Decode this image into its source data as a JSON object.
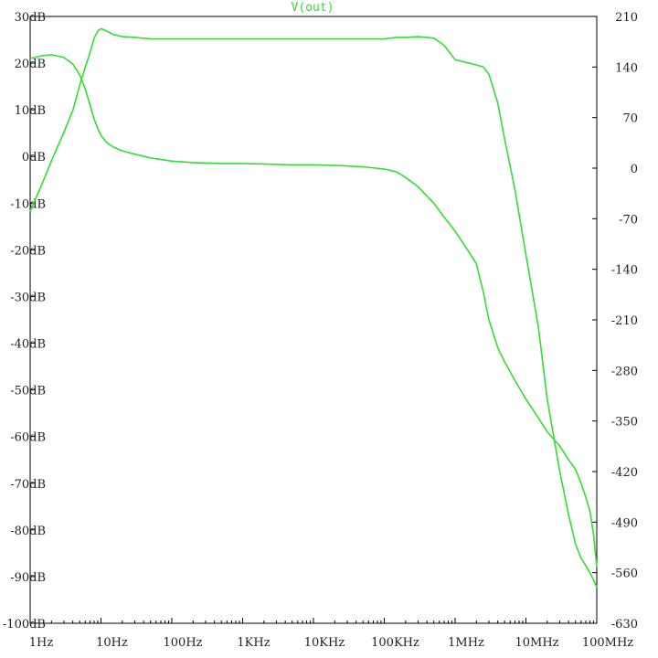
{
  "chart_data": {
    "type": "line",
    "title": "V(out)",
    "xscale": "log",
    "xlim": [
      1,
      100000000
    ],
    "x_ticks": [
      {
        "value": 1,
        "label": "1Hz"
      },
      {
        "value": 10,
        "label": "10Hz"
      },
      {
        "value": 100,
        "label": "100Hz"
      },
      {
        "value": 1000,
        "label": "1KHz"
      },
      {
        "value": 10000,
        "label": "10KHz"
      },
      {
        "value": 100000,
        "label": "100KHz"
      },
      {
        "value": 1000000,
        "label": "1MHz"
      },
      {
        "value": 10000000,
        "label": "10MHz"
      },
      {
        "value": 100000000,
        "label": "100MHz"
      }
    ],
    "ylim_left": [
      -100,
      30
    ],
    "y_ticks_left": [
      {
        "value": 30,
        "label": "30dB"
      },
      {
        "value": 20,
        "label": "20dB"
      },
      {
        "value": 10,
        "label": "10dB"
      },
      {
        "value": 0,
        "label": "0dB"
      },
      {
        "value": -10,
        "label": "-10dB"
      },
      {
        "value": -20,
        "label": "-20dB"
      },
      {
        "value": -30,
        "label": "-30dB"
      },
      {
        "value": -40,
        "label": "-40dB"
      },
      {
        "value": -50,
        "label": "-50dB"
      },
      {
        "value": -60,
        "label": "-60dB"
      },
      {
        "value": -70,
        "label": "-70dB"
      },
      {
        "value": -80,
        "label": "-80dB"
      },
      {
        "value": -90,
        "label": "-90dB"
      },
      {
        "value": -100,
        "label": "-100dB"
      }
    ],
    "ylim_right": [
      -630,
      210
    ],
    "y_ticks_right": [
      {
        "value": 210,
        "label": "210"
      },
      {
        "value": 140,
        "label": "140"
      },
      {
        "value": 70,
        "label": "70"
      },
      {
        "value": 0,
        "label": "0"
      },
      {
        "value": -70,
        "label": "-70"
      },
      {
        "value": -140,
        "label": "-140"
      },
      {
        "value": -210,
        "label": "-210"
      },
      {
        "value": -280,
        "label": "-280"
      },
      {
        "value": -350,
        "label": "-350"
      },
      {
        "value": -420,
        "label": "-420"
      },
      {
        "value": -490,
        "label": "-490"
      },
      {
        "value": -560,
        "label": "-560"
      },
      {
        "value": -630,
        "label": "-630"
      }
    ],
    "grid": false,
    "series_color": "#33dd33",
    "series": [
      {
        "axis": "left",
        "points": [
          [
            1,
            21
          ],
          [
            1.5,
            21.6
          ],
          [
            2,
            21.8
          ],
          [
            3,
            21.2
          ],
          [
            4,
            19.8
          ],
          [
            5,
            17.5
          ],
          [
            6,
            14.5
          ],
          [
            7,
            11
          ],
          [
            8,
            8
          ],
          [
            9,
            6
          ],
          [
            10,
            4.5
          ],
          [
            12,
            3
          ],
          [
            15,
            2
          ],
          [
            20,
            1.2
          ],
          [
            30,
            0.5
          ],
          [
            50,
            -0.3
          ],
          [
            100,
            -1
          ],
          [
            200,
            -1.3
          ],
          [
            500,
            -1.5
          ],
          [
            1000,
            -1.5
          ],
          [
            2000,
            -1.6
          ],
          [
            5000,
            -1.8
          ],
          [
            10000,
            -1.8
          ],
          [
            20000,
            -1.9
          ],
          [
            50000,
            -2.2
          ],
          [
            100000,
            -2.7
          ],
          [
            150000,
            -3.3
          ],
          [
            200000,
            -4.5
          ],
          [
            300000,
            -6.5
          ],
          [
            500000,
            -10
          ],
          [
            700000,
            -13
          ],
          [
            1000000,
            -16
          ],
          [
            1500000,
            -20
          ],
          [
            2000000,
            -23
          ],
          [
            2500000,
            -29
          ],
          [
            3000000,
            -35
          ],
          [
            4000000,
            -41
          ],
          [
            5000000,
            -44
          ],
          [
            7000000,
            -48
          ],
          [
            10000000,
            -52
          ],
          [
            15000000,
            -56
          ],
          [
            20000000,
            -59
          ],
          [
            30000000,
            -62
          ],
          [
            40000000,
            -65
          ],
          [
            50000000,
            -67
          ],
          [
            60000000,
            -70
          ],
          [
            70000000,
            -73
          ],
          [
            80000000,
            -76
          ],
          [
            90000000,
            -81
          ],
          [
            100000000,
            -88
          ]
        ]
      },
      {
        "axis": "right",
        "points": [
          [
            1,
            -60
          ],
          [
            1.5,
            -20
          ],
          [
            2,
            10
          ],
          [
            3,
            50
          ],
          [
            4,
            80
          ],
          [
            5,
            115
          ],
          [
            6,
            140
          ],
          [
            7,
            160
          ],
          [
            8,
            180
          ],
          [
            9,
            190
          ],
          [
            10,
            193
          ],
          [
            12,
            190
          ],
          [
            15,
            185
          ],
          [
            20,
            182
          ],
          [
            30,
            181
          ],
          [
            50,
            179
          ],
          [
            100,
            179
          ],
          [
            500,
            179
          ],
          [
            1000,
            179
          ],
          [
            5000,
            179
          ],
          [
            10000,
            179
          ],
          [
            50000,
            179
          ],
          [
            100000,
            179
          ],
          [
            150000,
            181
          ],
          [
            200000,
            181
          ],
          [
            300000,
            182
          ],
          [
            500000,
            180
          ],
          [
            700000,
            170
          ],
          [
            1000000,
            150
          ],
          [
            1500000,
            146
          ],
          [
            2000000,
            143
          ],
          [
            2500000,
            140
          ],
          [
            3000000,
            130
          ],
          [
            4000000,
            90
          ],
          [
            5000000,
            40
          ],
          [
            7000000,
            -30
          ],
          [
            10000000,
            -120
          ],
          [
            15000000,
            -220
          ],
          [
            20000000,
            -320
          ],
          [
            30000000,
            -420
          ],
          [
            40000000,
            -480
          ],
          [
            50000000,
            -520
          ],
          [
            60000000,
            -540
          ],
          [
            70000000,
            -550
          ],
          [
            80000000,
            -560
          ],
          [
            90000000,
            -570
          ],
          [
            100000000,
            -580
          ]
        ]
      }
    ]
  }
}
